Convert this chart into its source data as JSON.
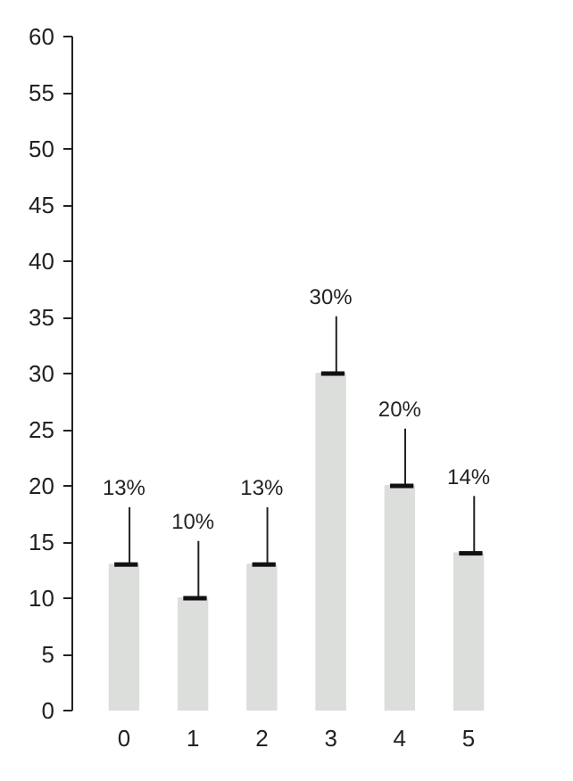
{
  "chart_data": {
    "type": "bar",
    "categories": [
      "0",
      "1",
      "2",
      "3",
      "4",
      "5"
    ],
    "values": [
      13,
      10,
      13,
      30,
      20,
      14
    ],
    "value_labels": [
      "13%",
      "10%",
      "13%",
      "30%",
      "20%",
      "14%"
    ],
    "color": "#dcdedc",
    "ylim": [
      0,
      60
    ],
    "yticks": [
      0,
      5,
      10,
      15,
      20,
      25,
      30,
      35,
      40,
      45,
      50,
      55,
      60
    ],
    "grid": false
  }
}
